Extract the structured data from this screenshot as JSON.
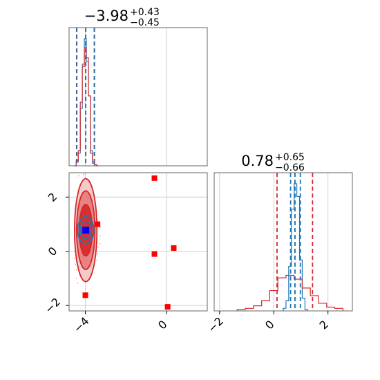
{
  "chart_data": [
    {
      "type": "area",
      "panel": "top-left-marginal",
      "title": {
        "value": "−3.98",
        "plus": "+0.43",
        "minus": "−0.45"
      },
      "xlim": [
        -4.8,
        2.0
      ],
      "x_ticks": [
        -4,
        0
      ],
      "grid": true,
      "series": [
        {
          "color": "#1f77b4",
          "bins_x": [
            -4.5,
            -4.4,
            -4.3,
            -4.2,
            -4.1,
            -4.0,
            -3.9,
            -3.8,
            -3.7,
            -3.6,
            -3.5,
            -3.4
          ],
          "values": [
            0.0,
            0.03,
            0.1,
            0.45,
            0.8,
            1.0,
            0.82,
            0.55,
            0.12,
            0.02,
            0.0,
            0.0
          ]
        },
        {
          "color": "#d62728",
          "bins_x": [
            -4.5,
            -4.4,
            -4.3,
            -4.2,
            -4.1,
            -4.0,
            -3.9,
            -3.8,
            -3.7,
            -3.6,
            -3.5,
            -3.4
          ],
          "values": [
            0.0,
            0.04,
            0.12,
            0.5,
            0.78,
            0.93,
            0.85,
            0.55,
            0.1,
            0.03,
            0.01,
            0.0
          ]
        }
      ],
      "lines": [
        {
          "x": -4.43,
          "color": "#d62728"
        },
        {
          "x": -3.98,
          "color": "#d62728"
        },
        {
          "x": -3.55,
          "color": "#d62728"
        },
        {
          "x": -4.42,
          "color": "#1f77b4"
        },
        {
          "x": -3.98,
          "color": "#1f77b4"
        },
        {
          "x": -3.56,
          "color": "#1f77b4"
        }
      ]
    },
    {
      "type": "scatter",
      "panel": "bottom-left-joint",
      "xlim": [
        -4.8,
        2.0
      ],
      "ylim": [
        -2.2,
        2.9
      ],
      "x_ticks": [
        -4,
        0
      ],
      "y_ticks": [
        -2,
        0,
        2
      ],
      "grid": true,
      "contours": [
        {
          "color": "#d62728",
          "center": [
            -3.98,
            0.78
          ],
          "radii": [
            [
              0.55,
              1.9
            ],
            [
              0.45,
              1.45
            ],
            [
              0.32,
              0.95
            ]
          ]
        },
        {
          "color": "#1f77b4",
          "center": [
            -3.98,
            0.78
          ],
          "radii": [
            [
              0.4,
              0.5
            ],
            [
              0.28,
              0.32
            ]
          ]
        }
      ],
      "markers": [
        {
          "x": -0.6,
          "y": 2.7,
          "color": "#ff0000"
        },
        {
          "x": -3.4,
          "y": 1.0,
          "color": "#ff0000"
        },
        {
          "x": 0.35,
          "y": 0.12,
          "color": "#ff0000"
        },
        {
          "x": -0.6,
          "y": -0.1,
          "color": "#ff0000"
        },
        {
          "x": -4.0,
          "y": -1.62,
          "color": "#ff0000"
        },
        {
          "x": 0.05,
          "y": -2.05,
          "color": "#ff0000"
        }
      ],
      "point_estimate": {
        "x": -3.98,
        "y": 0.78,
        "color": "#0000ff"
      }
    },
    {
      "type": "area",
      "panel": "bottom-right-marginal",
      "title": {
        "value": "0.78",
        "plus": "+0.65",
        "minus": "−0.66"
      },
      "xlim": [
        -2.2,
        2.9
      ],
      "x_ticks": [
        -2,
        0,
        2
      ],
      "grid": true,
      "series": [
        {
          "color": "#1f77b4",
          "bins_x": [
            0.4,
            0.5,
            0.6,
            0.7,
            0.8,
            0.9,
            1.0,
            1.1,
            1.2
          ],
          "values": [
            0.02,
            0.08,
            0.35,
            0.8,
            1.0,
            0.9,
            0.4,
            0.1,
            0.01
          ]
        },
        {
          "color": "#d62728",
          "bins_x": [
            -1.2,
            -0.9,
            -0.6,
            -0.3,
            0.0,
            0.3,
            0.6,
            0.9,
            1.2,
            1.5,
            1.8,
            2.1,
            2.4
          ],
          "values": [
            0.01,
            0.02,
            0.04,
            0.08,
            0.16,
            0.26,
            0.28,
            0.25,
            0.18,
            0.12,
            0.06,
            0.03,
            0.02
          ]
        }
      ],
      "lines": [
        {
          "x": 0.12,
          "color": "#d62728"
        },
        {
          "x": 0.78,
          "color": "#d62728"
        },
        {
          "x": 1.43,
          "color": "#d62728"
        },
        {
          "x": 0.62,
          "color": "#1f77b4"
        },
        {
          "x": 0.78,
          "color": "#1f77b4"
        },
        {
          "x": 0.98,
          "color": "#1f77b4"
        }
      ]
    }
  ]
}
